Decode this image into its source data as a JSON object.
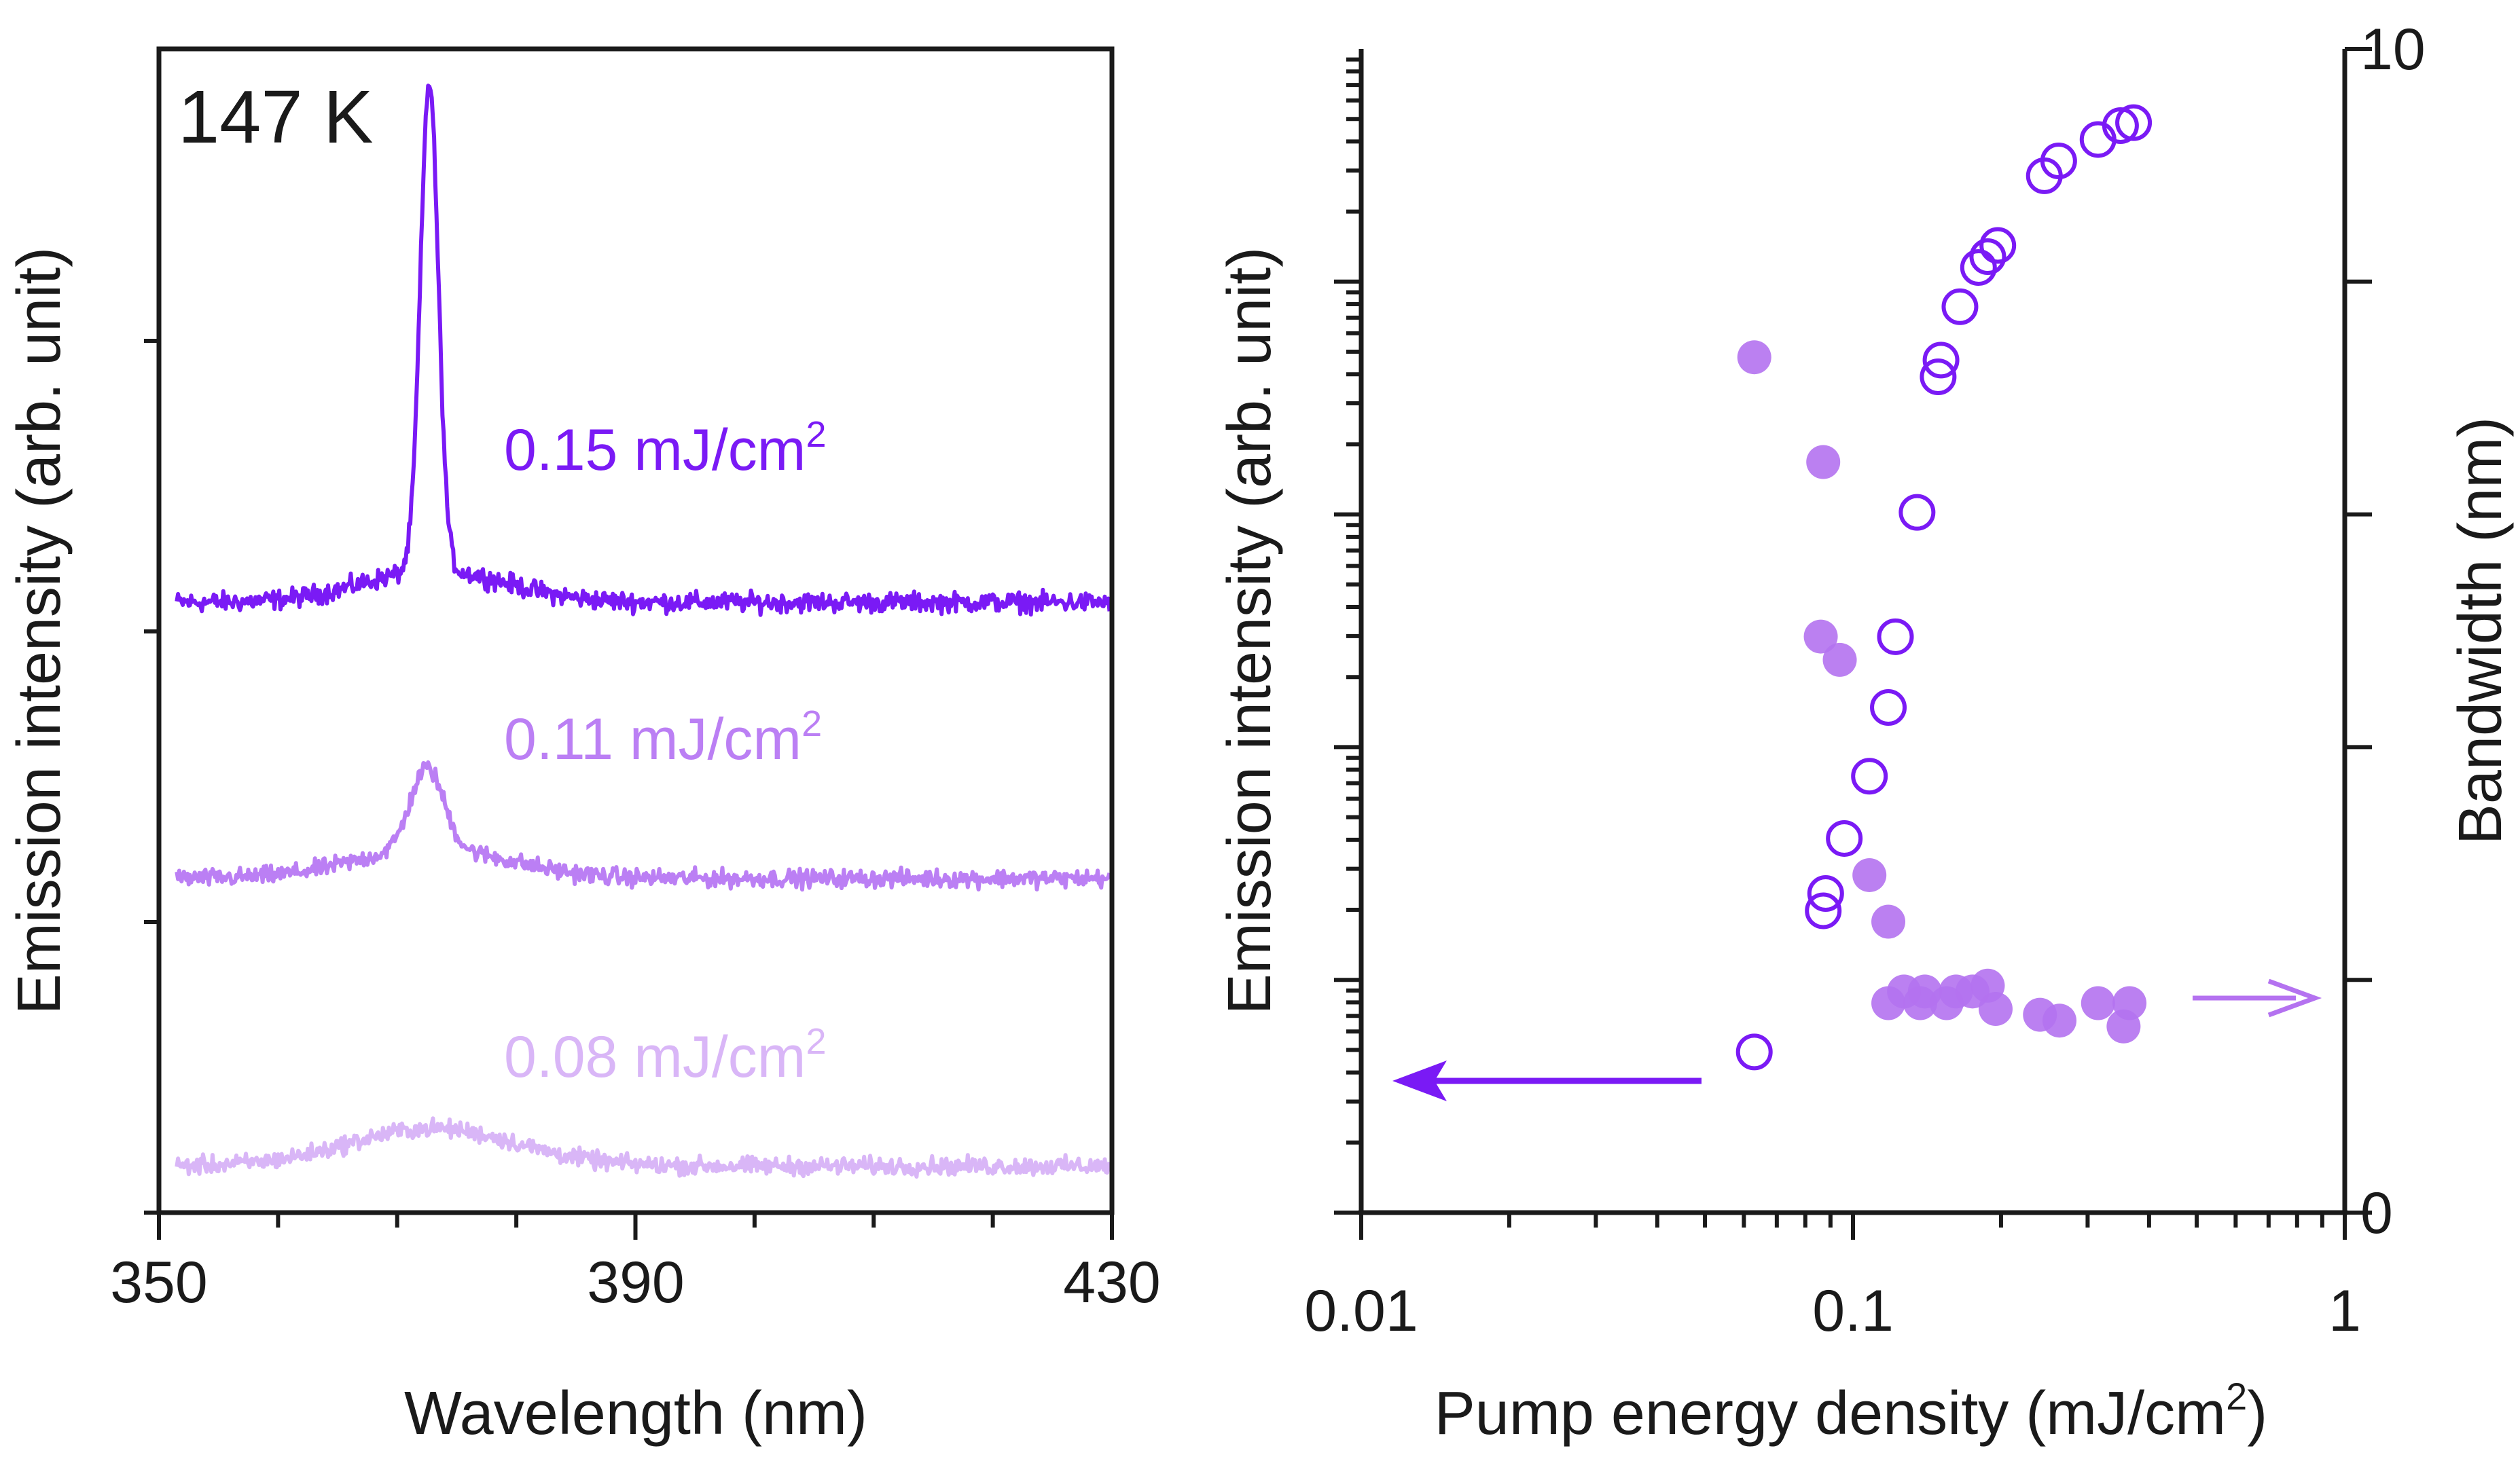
{
  "colors": {
    "dark": "#7A1AF5",
    "mid": "#BB7FF4",
    "light": "#D9B6F7",
    "axis": "#1a1a1a",
    "filled": "#B472F0",
    "arrow_left": "#7A1AF5",
    "arrow_right": "#B472F0"
  },
  "chart_data": [
    {
      "type": "line",
      "annotation": "147 K",
      "xlabel": "Wavelength (nm)",
      "ylabel": "Emission intensity (arb. unit)",
      "xlim": [
        350,
        430
      ],
      "xticks": [
        "350",
        "390",
        "430"
      ],
      "series": [
        {
          "name": "0.15 mJ/cm²",
          "name_base": "0.15 mJ/cm",
          "name_sup": "2",
          "offset": 2.1,
          "peak_x": 372.7,
          "peak_height": 1.68,
          "peak_width": 0.75,
          "bump_height": 0.11,
          "bump_width": 6.0,
          "noise": 0.05
        },
        {
          "name": "0.11 mJ/cm²",
          "name_base": "0.11 mJ/cm",
          "name_sup": "2",
          "offset": 1.15,
          "peak_x": 372.5,
          "peak_height": 0.28,
          "peak_width": 1.4,
          "bump_height": 0.1,
          "bump_width": 6.5,
          "noise": 0.045
        },
        {
          "name": "0.08 mJ/cm²",
          "name_base": "0.08 mJ/cm",
          "name_sup": "2",
          "offset": 0.16,
          "peak_x": 372.5,
          "peak_height": 0.0,
          "peak_width": 1.4,
          "bump_height": 0.13,
          "bump_width": 7.0,
          "noise": 0.045
        }
      ]
    },
    {
      "type": "scatter",
      "xlabel": "Pump energy density (mJ/cm²)",
      "xlabel_base": "Pump energy density (mJ/cm",
      "xlabel_sup": "2",
      "xlabel_end": ")",
      "ylabel_left": "Emission intensity (arb. unit)",
      "ylabel_right": "Bandwidth (nm)",
      "xscale": "log",
      "xlim": [
        0.01,
        1
      ],
      "xticks": [
        "0.01",
        "0.1",
        "1"
      ],
      "ylim_right": [
        0,
        10
      ],
      "yticks_right": [
        "0",
        "10"
      ],
      "left_log_decades": [
        1,
        100000
      ],
      "series": [
        {
          "name": "",
          "marker": "open-circle",
          "axis": "left",
          "points": [
            [
              0.063,
              4.9
            ],
            [
              0.087,
              19.8
            ],
            [
              0.088,
              23.5
            ],
            [
              0.096,
              40.5
            ],
            [
              0.108,
              75
            ],
            [
              0.118,
              148
            ],
            [
              0.122,
              298
            ],
            [
              0.135,
              1020
            ],
            [
              0.149,
              3900
            ],
            [
              0.151,
              4600
            ],
            [
              0.165,
              7800
            ],
            [
              0.18,
              11500
            ],
            [
              0.188,
              12800
            ],
            [
              0.197,
              14300
            ],
            [
              0.245,
              28500
            ],
            [
              0.262,
              33000
            ],
            [
              0.315,
              40800
            ],
            [
              0.35,
              46800
            ],
            [
              0.372,
              48200
            ]
          ]
        },
        {
          "name": "",
          "marker": "filled-circle",
          "axis": "right",
          "points": [
            [
              0.063,
              7.35
            ],
            [
              0.087,
              6.45
            ],
            [
              0.086,
              4.95
            ],
            [
              0.094,
              4.75
            ],
            [
              0.108,
              2.9
            ],
            [
              0.118,
              2.5
            ],
            [
              0.118,
              1.8
            ],
            [
              0.127,
              1.9
            ],
            [
              0.137,
              1.8
            ],
            [
              0.14,
              1.9
            ],
            [
              0.155,
              1.8
            ],
            [
              0.162,
              1.9
            ],
            [
              0.175,
              1.9
            ],
            [
              0.188,
              1.95
            ],
            [
              0.195,
              1.75
            ],
            [
              0.24,
              1.7
            ],
            [
              0.263,
              1.65
            ],
            [
              0.315,
              1.8
            ],
            [
              0.355,
              1.6
            ],
            [
              0.365,
              1.8
            ]
          ]
        }
      ]
    }
  ]
}
